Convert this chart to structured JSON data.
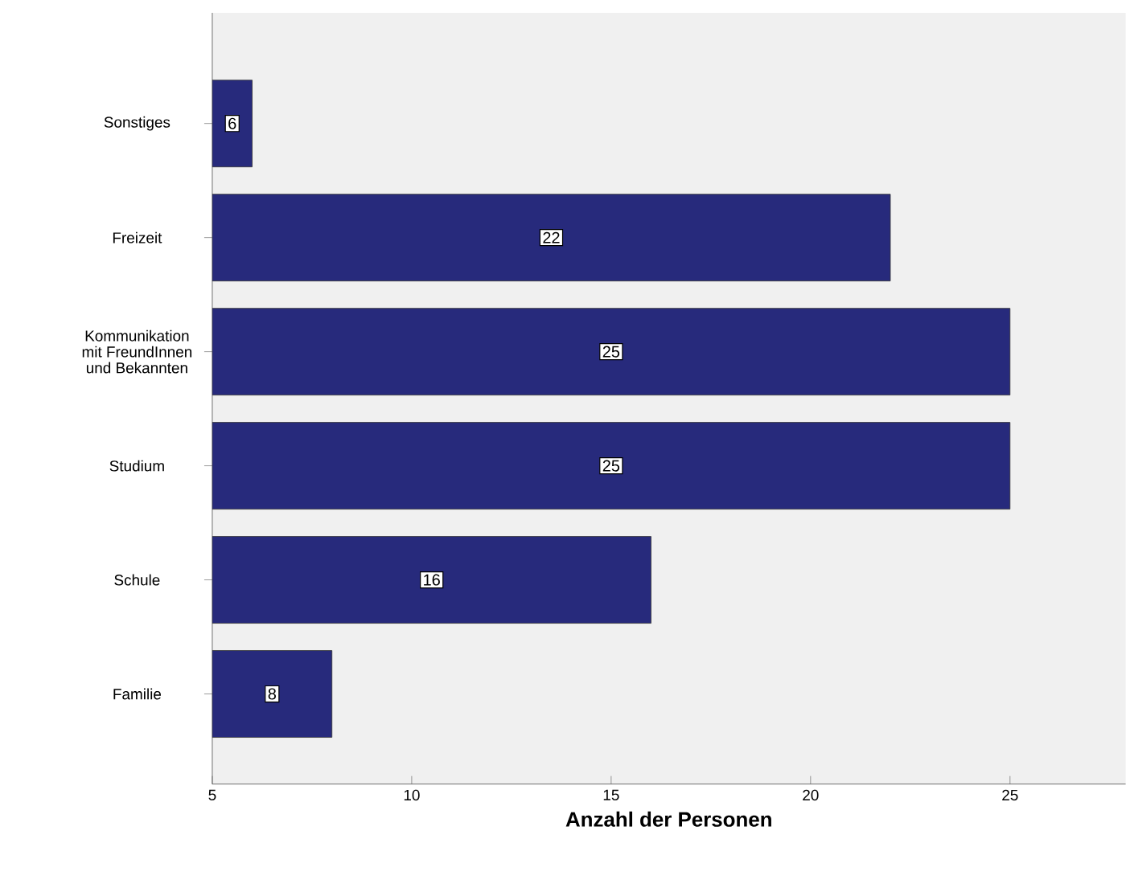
{
  "chart_data": {
    "type": "bar",
    "orientation": "horizontal",
    "xlabel": "Anzahl der Personen",
    "categories": [
      "Sonstiges",
      "Freizeit",
      "Kommunikation mit FreundInnen und Bekannten",
      "Studium",
      "Schule",
      "Familie"
    ],
    "values": [
      6,
      22,
      25,
      25,
      16,
      8
    ],
    "color": "#272a7c",
    "xlim": [
      5,
      27.9
    ],
    "xticks": [
      5,
      10,
      15,
      20,
      25
    ],
    "data_labels": true
  }
}
